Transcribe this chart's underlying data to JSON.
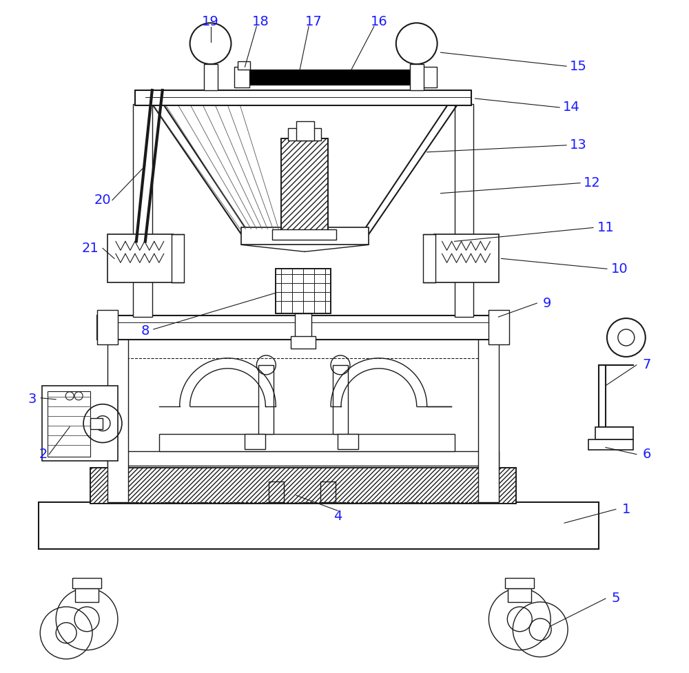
{
  "bg_color": "#ffffff",
  "line_color": "#1a1a1a",
  "label_color": "#1a1aff",
  "lw": 1.0,
  "figsize": [
    10.0,
    9.77
  ]
}
